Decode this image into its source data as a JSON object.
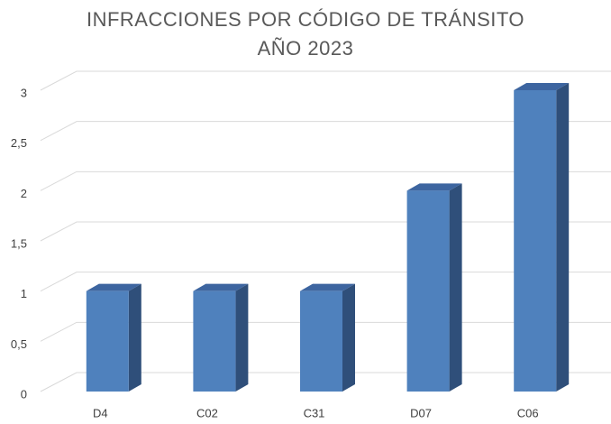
{
  "chart_data": {
    "type": "bar3d",
    "title": "INFRACCIONES POR CÓDIGO DE TRÁNSITO AÑO 2023",
    "categories": [
      "D4",
      "C02",
      "C31",
      "D07",
      "C06"
    ],
    "values": [
      1,
      1,
      1,
      2,
      3
    ],
    "color": "#4f81bd",
    "ylim": [
      0,
      3
    ],
    "yticks": [
      0,
      {
        "value": 0.5,
        "label": "0,5"
      },
      1,
      {
        "value": 1.5,
        "label": "1,5"
      },
      2,
      {
        "value": 2.5,
        "label": "2,5"
      },
      3
    ],
    "grid": true
  }
}
